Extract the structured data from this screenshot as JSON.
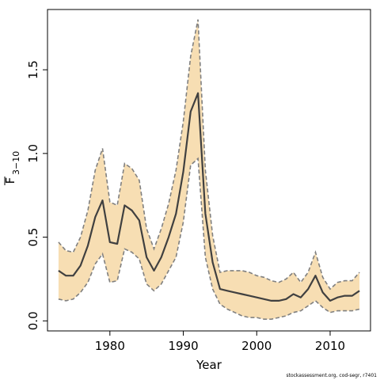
{
  "chart_data": {
    "type": "line",
    "title": "",
    "xlabel": "Year",
    "ylabel_main": "F",
    "ylabel_sub": "3−10",
    "xlim": [
      1971.5,
      2015.5
    ],
    "ylim": [
      -0.06,
      1.86
    ],
    "xticks": [
      1980,
      1990,
      2000,
      2010
    ],
    "yticks": [
      0.0,
      0.5,
      1.0,
      1.5
    ],
    "ytick_labels": [
      "0.0",
      "0.5",
      "1.0",
      "1.5"
    ],
    "grid": false,
    "legend": "none",
    "series": [
      {
        "x": [
          1973,
          1974,
          1975,
          1976,
          1977,
          1978,
          1979,
          1980,
          1981,
          1982,
          1983,
          1984,
          1985,
          1986,
          1987,
          1988,
          1989,
          1990,
          1991,
          1992,
          1993,
          1994,
          1995,
          1996,
          1997,
          1998,
          1999,
          2000,
          2001,
          2002,
          2003,
          2004,
          2005,
          2006,
          2007,
          2008,
          2009,
          2010,
          2011,
          2012,
          2013,
          2014
        ],
        "estimate": [
          0.3,
          0.27,
          0.27,
          0.33,
          0.45,
          0.62,
          0.72,
          0.47,
          0.46,
          0.69,
          0.66,
          0.6,
          0.38,
          0.3,
          0.38,
          0.5,
          0.64,
          0.89,
          1.25,
          1.36,
          0.64,
          0.35,
          0.19,
          0.18,
          0.17,
          0.16,
          0.15,
          0.14,
          0.13,
          0.12,
          0.12,
          0.13,
          0.16,
          0.14,
          0.19,
          0.27,
          0.17,
          0.12,
          0.14,
          0.15,
          0.15,
          0.18
        ],
        "lower": [
          0.13,
          0.12,
          0.13,
          0.17,
          0.23,
          0.34,
          0.4,
          0.23,
          0.24,
          0.43,
          0.41,
          0.37,
          0.22,
          0.18,
          0.22,
          0.3,
          0.38,
          0.59,
          0.93,
          0.97,
          0.38,
          0.19,
          0.1,
          0.07,
          0.05,
          0.03,
          0.02,
          0.02,
          0.01,
          0.01,
          0.02,
          0.03,
          0.05,
          0.06,
          0.09,
          0.12,
          0.08,
          0.05,
          0.06,
          0.06,
          0.06,
          0.07
        ],
        "upper": [
          0.47,
          0.42,
          0.41,
          0.5,
          0.66,
          0.9,
          1.03,
          0.71,
          0.69,
          0.94,
          0.91,
          0.84,
          0.55,
          0.43,
          0.55,
          0.7,
          0.9,
          1.19,
          1.58,
          1.8,
          0.9,
          0.51,
          0.29,
          0.3,
          0.3,
          0.3,
          0.29,
          0.27,
          0.26,
          0.24,
          0.23,
          0.25,
          0.29,
          0.23,
          0.29,
          0.41,
          0.26,
          0.19,
          0.23,
          0.24,
          0.24,
          0.29
        ]
      }
    ],
    "colors": {
      "band_fill": "#f7deb3",
      "band_edge": "#808080",
      "estimate_line": "#404040",
      "frame": "#000000"
    }
  },
  "footer": "stockassessment.org, cod-segr, r7401"
}
